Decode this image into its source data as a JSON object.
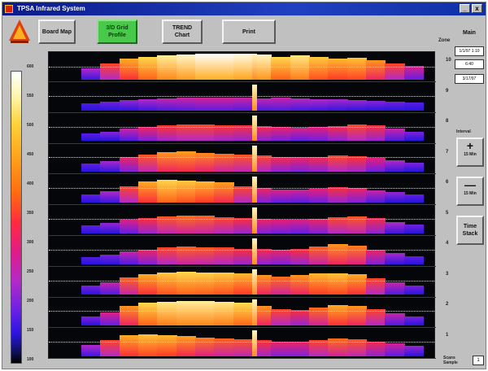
{
  "window": {
    "title": "TPSA Infrared System",
    "close_label": "x",
    "minimize_label": "_"
  },
  "toolbar": {
    "buttons": [
      {
        "label": "Board Map",
        "active": false
      },
      {
        "label": "3/D Grid\nProfile",
        "active": true
      },
      {
        "label": "TREND\nChart",
        "active": false
      },
      {
        "label": "Print",
        "active": false
      }
    ]
  },
  "right_panel": {
    "title": "Main",
    "info": [
      "1/1/97 1:10",
      "6:40",
      "3/17/97"
    ],
    "interval_label": "Interval",
    "zoom_in": {
      "symbol": "+",
      "label": "15 Min"
    },
    "zoom_out": {
      "symbol": "—",
      "label": "15 Min"
    },
    "time_stack": "Time\nStack"
  },
  "zone_header": "Zone",
  "zones": [
    "10",
    "9",
    "8",
    "7",
    "6",
    "5",
    "4",
    "3",
    "2",
    "1"
  ],
  "scale": {
    "labels": [
      "600",
      "550",
      "500",
      "450",
      "400",
      "350",
      "300",
      "250",
      "200",
      "150",
      "100"
    ]
  },
  "scan": {
    "label": "Scans\nSample",
    "value": "1"
  },
  "colors": {
    "active_button": "#49c94a",
    "title_bar": "#0a1a8c",
    "plot_background": "#05060a"
  },
  "profiles": [
    {
      "zone": "10",
      "temps": [
        0.3,
        0.55,
        0.75,
        0.85,
        0.92,
        0.96,
        1.0,
        1.0,
        0.98,
        0.95,
        0.85,
        0.9,
        0.82,
        0.78,
        0.8,
        0.7,
        0.55,
        0.4
      ]
    },
    {
      "zone": "9",
      "temps": [
        0.1,
        0.18,
        0.25,
        0.3,
        0.34,
        0.36,
        0.38,
        0.38,
        0.36,
        0.34,
        0.35,
        0.32,
        0.3,
        0.28,
        0.26,
        0.22,
        0.18,
        0.12
      ]
    },
    {
      "zone": "8",
      "temps": [
        0.12,
        0.22,
        0.35,
        0.45,
        0.52,
        0.55,
        0.55,
        0.52,
        0.5,
        0.48,
        0.44,
        0.4,
        0.42,
        0.48,
        0.55,
        0.5,
        0.35,
        0.2
      ]
    },
    {
      "zone": "7",
      "temps": [
        0.15,
        0.28,
        0.45,
        0.58,
        0.7,
        0.72,
        0.68,
        0.62,
        0.58,
        0.55,
        0.48,
        0.45,
        0.48,
        0.55,
        0.52,
        0.42,
        0.3,
        0.2
      ]
    },
    {
      "zone": "6",
      "temps": [
        0.15,
        0.3,
        0.55,
        0.75,
        0.85,
        0.82,
        0.78,
        0.72,
        0.55,
        0.45,
        0.4,
        0.38,
        0.42,
        0.5,
        0.45,
        0.35,
        0.25,
        0.15
      ]
    },
    {
      "zone": "5",
      "temps": [
        0.15,
        0.25,
        0.4,
        0.5,
        0.58,
        0.62,
        0.6,
        0.55,
        0.5,
        0.45,
        0.42,
        0.4,
        0.45,
        0.55,
        0.58,
        0.48,
        0.3,
        0.18
      ]
    },
    {
      "zone": "4",
      "temps": [
        0.1,
        0.2,
        0.35,
        0.45,
        0.55,
        0.6,
        0.58,
        0.55,
        0.5,
        0.48,
        0.45,
        0.5,
        0.6,
        0.7,
        0.65,
        0.45,
        0.28,
        0.15
      ]
    },
    {
      "zone": "3",
      "temps": [
        0.2,
        0.35,
        0.6,
        0.75,
        0.82,
        0.85,
        0.84,
        0.82,
        0.78,
        0.7,
        0.62,
        0.7,
        0.78,
        0.8,
        0.75,
        0.55,
        0.35,
        0.2
      ]
    },
    {
      "zone": "2",
      "temps": [
        0.2,
        0.4,
        0.7,
        0.85,
        0.9,
        0.92,
        0.92,
        0.9,
        0.86,
        0.7,
        0.55,
        0.5,
        0.62,
        0.75,
        0.7,
        0.55,
        0.35,
        0.2
      ]
    },
    {
      "zone": "1",
      "temps": [
        0.3,
        0.55,
        0.75,
        0.8,
        0.78,
        0.72,
        0.65,
        0.6,
        0.58,
        0.52,
        0.45,
        0.45,
        0.55,
        0.62,
        0.58,
        0.48,
        0.38,
        0.25
      ]
    }
  ]
}
